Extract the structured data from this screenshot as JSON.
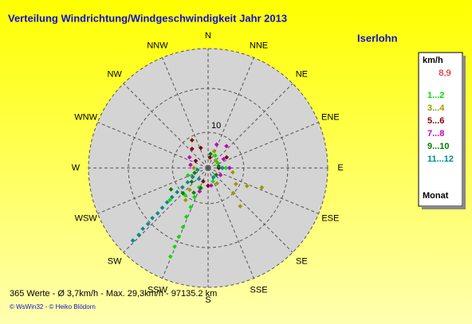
{
  "chart_data": {
    "type": "polar_scatter",
    "title": "Verteilung Windrichtung/Windgeschwindigkeit  Jahr 2013",
    "location": "Iserlohn",
    "directions": [
      "N",
      "NNE",
      "NE",
      "ENE",
      "E",
      "ESE",
      "SE",
      "SSE",
      "S",
      "SSW",
      "SW",
      "WSW",
      "W",
      "WNW",
      "NW",
      "NNW"
    ],
    "rlim": [
      0,
      33.5
    ],
    "rticks": [
      10
    ],
    "legend_title": "km/h",
    "legend_note": "8,9",
    "legend_footer": "Monat",
    "series": [
      {
        "name": "1...2",
        "color": "#00e000",
        "x": [
          205,
          205,
          204,
          204,
          203,
          203,
          203,
          203,
          30,
          60,
          90,
          160,
          250,
          220,
          230
        ],
        "values": [
          6,
          9,
          12,
          15,
          18,
          21,
          24,
          27,
          4,
          3,
          5,
          4,
          6,
          10,
          14
        ]
      },
      {
        "name": "3...4",
        "color": "#999900",
        "x": [
          110,
          115,
          120,
          100,
          135,
          140,
          150,
          200,
          215,
          220,
          270,
          20,
          45
        ],
        "values": [
          16,
          12,
          9,
          7,
          10,
          14,
          5,
          6,
          11,
          8,
          4,
          5,
          3
        ]
      },
      {
        "name": "5...6",
        "color": "#800000",
        "x": [
          330,
          320,
          340,
          300,
          180,
          200,
          240,
          90,
          60,
          10
        ],
        "values": [
          9,
          7,
          6,
          4,
          5,
          4,
          5,
          3,
          6,
          3
        ]
      },
      {
        "name": "7...8",
        "color": "#c000c0",
        "x": [
          20,
          40,
          60,
          300,
          280,
          200,
          170,
          120,
          90
        ],
        "values": [
          7,
          8,
          5,
          6,
          5,
          7,
          5,
          4,
          6
        ]
      },
      {
        "name": "9...10",
        "color": "#008000",
        "x": [
          210,
          225,
          240,
          230,
          200,
          250,
          10,
          80,
          130
        ],
        "values": [
          8,
          10,
          12,
          6,
          6,
          4,
          4,
          3,
          3
        ]
      },
      {
        "name": "11...12",
        "color": "#008b8b",
        "x": [
          226,
          226,
          227,
          227,
          228,
          228,
          229,
          230,
          231,
          232,
          233,
          235,
          240,
          260,
          220,
          90,
          150
        ],
        "values": [
          29.3,
          27,
          25,
          23,
          21,
          19,
          17,
          15,
          13,
          11,
          9,
          7,
          5,
          3,
          4,
          4,
          3
        ]
      }
    ],
    "summary": "365 Werte   -   Ø 3,7km/h  -  Max. 29,3km/h   -   97135.2 km",
    "credits": "© WsWin32  -  © Heiko Blödorn"
  }
}
